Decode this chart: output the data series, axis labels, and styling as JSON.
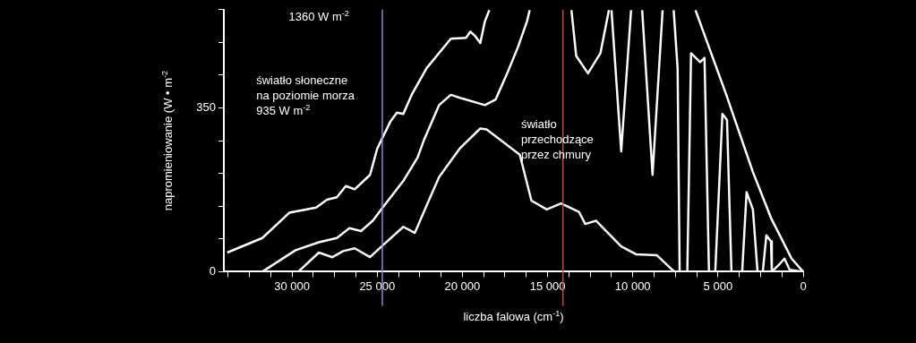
{
  "chart_data": {
    "type": "line",
    "xlabel": "liczba falowa (cm$^{-1}$)",
    "ylabel": "napromieniowanie (W • m$^{-2}$",
    "xlim": [
      34000,
      0
    ],
    "ylim": [
      0,
      560
    ],
    "xticks": [
      {
        "value": 30000,
        "label": "30 000"
      },
      {
        "value": 25000,
        "label": "25 000"
      },
      {
        "value": 20000,
        "label": "20 000"
      },
      {
        "value": 15000,
        "label": "15 000"
      },
      {
        "value": 10000,
        "label": "10 000"
      },
      {
        "value": 5000,
        "label": "5 000"
      },
      0,
      {
        "value": 33750,
        "label": null
      },
      {
        "value": 32500,
        "label": null
      },
      {
        "value": 31250,
        "label": null
      },
      {
        "value": 28750,
        "label": null
      },
      {
        "value": 27500,
        "label": null
      },
      {
        "value": 26250,
        "label": null
      },
      {
        "value": 23750,
        "label": null
      },
      {
        "value": 22500,
        "label": null
      },
      {
        "value": 21250,
        "label": null
      },
      {
        "value": 18750,
        "label": null
      },
      {
        "value": 17500,
        "label": null
      },
      {
        "value": 16250,
        "label": null
      },
      {
        "value": 13750,
        "label": null
      },
      {
        "value": 12500,
        "label": null
      },
      {
        "value": 11250,
        "label": null
      },
      {
        "value": 8750,
        "label": null
      },
      {
        "value": 7500,
        "label": null
      },
      {
        "value": 6250,
        "label": null
      },
      {
        "value": 3750,
        "label": null
      },
      {
        "value": 2500,
        "label": null
      },
      {
        "value": 1250,
        "label": null
      }
    ],
    "yticks": [
      0,
      {
        "value": 70,
        "label": null
      },
      {
        "value": 140,
        "label": null
      },
      {
        "value": 210,
        "label": null
      },
      {
        "value": 280,
        "label": null
      },
      350,
      {
        "value": 420,
        "label": null
      },
      {
        "value": 490,
        "label": null
      },
      {
        "value": 560,
        "label": null
      }
    ],
    "grid": false,
    "legend": false,
    "marker": "none",
    "line_style": "solid",
    "series": [
      {
        "color": "#ffffff",
        "x": [
          33800,
          31740,
          30160,
          28580,
          27950,
          27370,
          26840,
          26320,
          25420,
          25000,
          24210,
          23840,
          23470,
          22950,
          22100,
          20680,
          19790,
          19530,
          19260,
          18950,
          18680,
          18420,
          12000,
          6320,
          4530,
          2950,
          1890,
          680,
          0
        ],
        "values": [
          41,
          72,
          126,
          137,
          154,
          159,
          183,
          176,
          207,
          263,
          322,
          340,
          337,
          380,
          435,
          498,
          500,
          513,
          504,
          489,
          535,
          559,
          null,
          559,
          380,
          213,
          115,
          28,
          0
        ]
      },
      {
        "color": "#fafafa",
        "x": [
          31740,
          29790,
          28420,
          27370,
          26630,
          25950,
          25260,
          24680,
          23470,
          22630,
          22260,
          21370,
          20680,
          20000,
          18680,
          18050,
          17370,
          16740,
          16210,
          16050,
          14800,
          13600,
          13320,
          12630,
          11900,
          11400,
          11350,
          11250,
          10680,
          10100,
          9900,
          9450,
          8840,
          8250,
          8000,
          7600,
          7370,
          7250,
          6800,
          6580,
          6050,
          5790,
          5530,
          5160,
          4740,
          4470,
          4210,
          3580,
          3320,
          2950,
          2680,
          2370,
          2160,
          1890,
          1840,
          1370,
          1100,
          790,
          0
        ],
        "values": [
          0,
          46,
          63,
          72,
          93,
          87,
          109,
          137,
          194,
          244,
          281,
          356,
          378,
          370,
          356,
          368,
          424,
          480,
          535,
          559,
          null,
          559,
          461,
          424,
          467,
          559,
          null,
          559,
          257,
          559,
          null,
          559,
          207,
          559,
          null,
          559,
          435,
          0,
          0,
          467,
          448,
          457,
          0,
          0,
          337,
          324,
          0,
          0,
          170,
          133,
          0,
          0,
          78,
          65,
          0,
          17,
          28,
          4,
          0
        ]
      },
      {
        "color": "#f5f5f5",
        "x": [
          29630,
          28420,
          27630,
          27000,
          26320,
          25420,
          24740,
          23470,
          22790,
          22260,
          21370,
          20160,
          20000,
          18950,
          18580,
          16630,
          15950,
          15050,
          14210,
          13160,
          12790,
          12160,
          10680,
          9790,
          8580,
          7680,
          7530
        ],
        "values": [
          0,
          41,
          31,
          44,
          50,
          31,
          54,
          96,
          83,
          128,
          202,
          263,
          269,
          306,
          304,
          250,
          152,
          133,
          146,
          128,
          102,
          109,
          54,
          37,
          35,
          4,
          0
        ]
      }
    ],
    "ref_lines": [
      {
        "axis": "x",
        "value": 24700,
        "color": "#9b7fd0"
      },
      {
        "axis": "x",
        "value": 14100,
        "color": "#b5503c"
      }
    ],
    "annotations": [
      "1360 W m$^{-2}$",
      "światło słoneczne\nna poziomie morza\n935 W m$^{-2}$",
      "światło\nprzechodzące\nprzez chmury"
    ]
  }
}
